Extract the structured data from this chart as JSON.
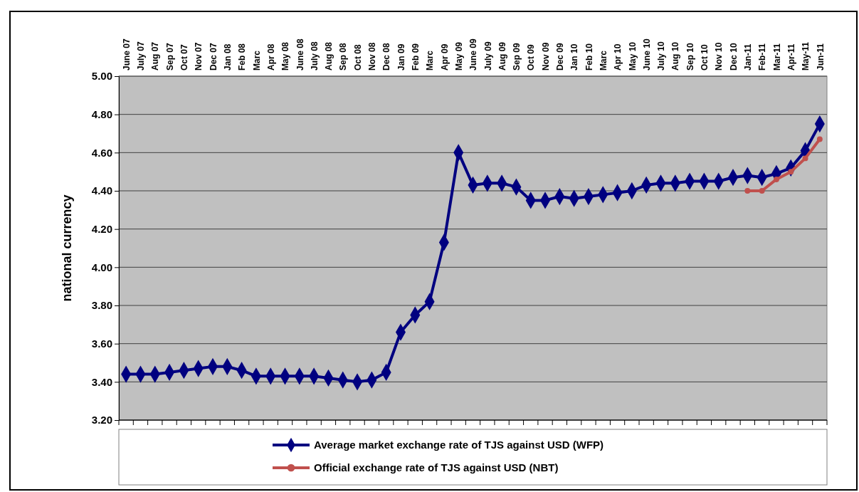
{
  "chart_data": {
    "type": "line",
    "ylabel": "national currency",
    "categories": [
      "June 07",
      "July 07",
      "Aug 07",
      "Sep 07",
      "Oct 07",
      "Nov 07",
      "Dec 07",
      "Jan 08",
      "Feb 08",
      "Marc",
      "Apr 08",
      "May 08",
      "June 08",
      "July 08",
      "Aug 08",
      "Sep 08",
      "Oct 08",
      "Nov 08",
      "Dec 08",
      "Jan 09",
      "Feb 09",
      "Marc",
      "Apr 09",
      "May 09",
      "June 09",
      "July 09",
      "Aug 09",
      "Sep 09",
      "Oct 09",
      "Nov 09",
      "Dec 09",
      "Jan 10",
      "Feb 10",
      "Marc",
      "Apr 10",
      "May 10",
      "June 10",
      "July 10",
      "Aug 10",
      "Sep 10",
      "Oct 10",
      "Nov 10",
      "Dec 10",
      "Jan-11",
      "Feb-11",
      "Mar-11",
      "Apr-11",
      "May-11",
      "Jun-11"
    ],
    "series": [
      {
        "name": "Average market exchange rate of TJS against USD (WFP)",
        "color": "#000080",
        "marker": "diamond",
        "values": [
          3.44,
          3.44,
          3.44,
          3.45,
          3.46,
          3.47,
          3.48,
          3.48,
          3.46,
          3.43,
          3.43,
          3.43,
          3.43,
          3.43,
          3.42,
          3.41,
          3.4,
          3.41,
          3.45,
          3.66,
          3.75,
          3.82,
          4.13,
          4.6,
          4.43,
          4.44,
          4.44,
          4.42,
          4.35,
          4.35,
          4.37,
          4.36,
          4.37,
          4.38,
          4.39,
          4.4,
          4.43,
          4.44,
          4.44,
          4.45,
          4.45,
          4.45,
          4.47,
          4.48,
          4.47,
          4.49,
          4.52,
          4.61,
          4.75
        ]
      },
      {
        "name": "Official exchange rate of TJS against USD (NBT)",
        "color": "#c0504d",
        "marker": "circle",
        "values": [
          null,
          null,
          null,
          null,
          null,
          null,
          null,
          null,
          null,
          null,
          null,
          null,
          null,
          null,
          null,
          null,
          null,
          null,
          null,
          null,
          null,
          null,
          null,
          null,
          null,
          null,
          null,
          null,
          null,
          null,
          null,
          null,
          null,
          null,
          null,
          null,
          null,
          null,
          null,
          null,
          null,
          null,
          null,
          4.4,
          4.4,
          4.46,
          4.5,
          4.57,
          4.67
        ]
      }
    ],
    "ylim": [
      3.2,
      5.0
    ],
    "yticks": [
      {
        "value": 3.2,
        "label": "3.20"
      },
      {
        "value": 3.4,
        "label": "3.40"
      },
      {
        "value": 3.6,
        "label": "3.60"
      },
      {
        "value": 3.8,
        "label": "3.80"
      },
      {
        "value": 4.0,
        "label": "4.00"
      },
      {
        "value": 4.2,
        "label": "4.20"
      },
      {
        "value": 4.4,
        "label": "4.40"
      },
      {
        "value": 4.6,
        "label": "4.60"
      },
      {
        "value": 4.8,
        "label": "4.80"
      },
      {
        "value": 5.0,
        "label": "5.00"
      }
    ],
    "grid": "y",
    "legend": "bottom",
    "line_style": "solid"
  }
}
